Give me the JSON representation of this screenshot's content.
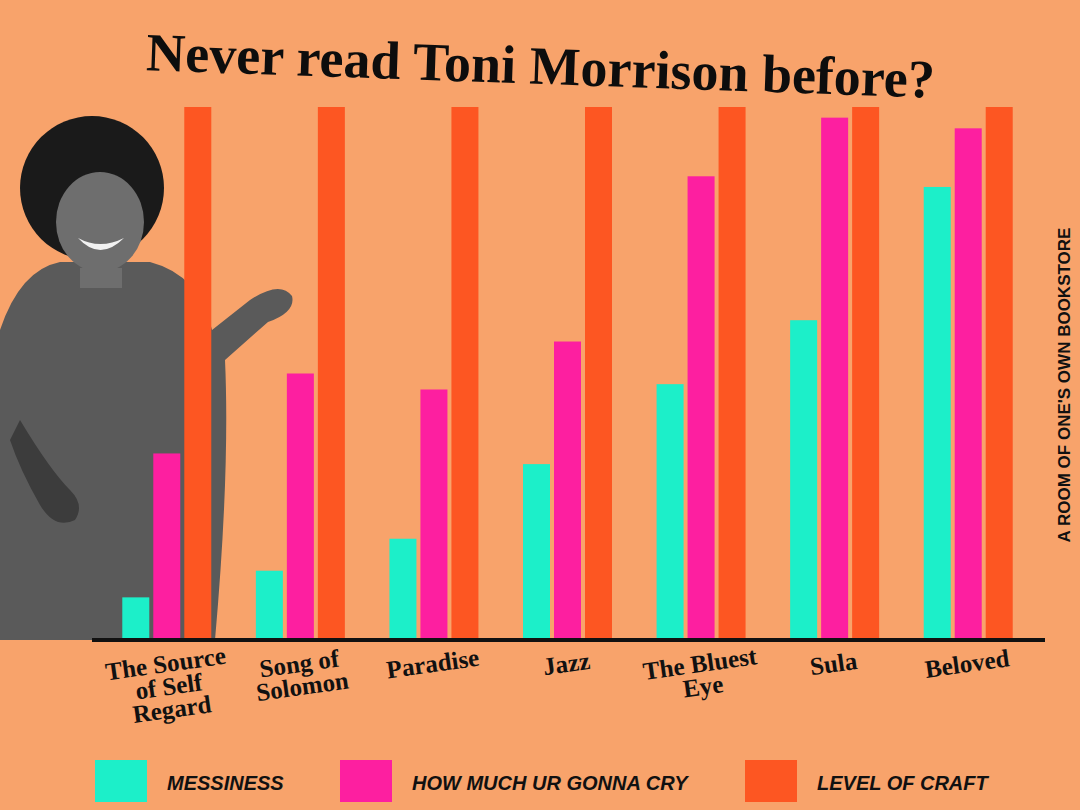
{
  "chart_data": {
    "type": "bar",
    "title": "Never read Toni Morrison before?",
    "annotations": [
      "A ROOM OF ONE'S OWN BOOKSTORE"
    ],
    "categories": [
      "The Source of Self Regard",
      "Song of Solomon",
      "Paradise",
      "Jazz",
      "The Bluest Eye",
      "Sula",
      "Beloved"
    ],
    "series": [
      {
        "name": "MESSINESS",
        "color": "#1cefc9",
        "values": [
          8,
          13,
          19,
          33,
          48,
          60,
          85
        ]
      },
      {
        "name": "HOW MUCH UR GONNA CRY",
        "color": "#fd1fa0",
        "values": [
          35,
          50,
          47,
          56,
          87,
          98,
          96
        ]
      },
      {
        "name": "LEVEL OF CRAFT",
        "color": "#fd5622",
        "values": [
          100,
          100,
          100,
          100,
          100,
          100,
          100
        ]
      }
    ],
    "ylim": [
      0,
      100
    ],
    "tick_labels": false,
    "grid": false,
    "legend": "bottom"
  }
}
